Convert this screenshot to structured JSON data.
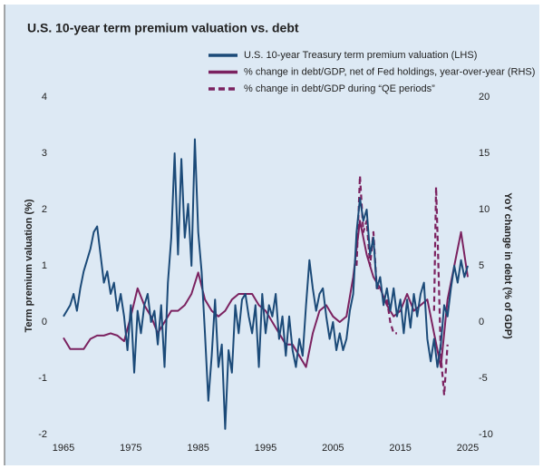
{
  "chart_data": {
    "type": "line",
    "title": "U.S. 10-year term premium valuation vs. debt",
    "ylabel": "Term premium valuation (%)",
    "y2label": "YoY change in debt (% of GDP)",
    "xlim": [
      1965,
      2025
    ],
    "xticks": [
      1965,
      1975,
      1985,
      1995,
      2005,
      2015,
      2025
    ],
    "ylim": [
      -2,
      4
    ],
    "yticks": [
      -2,
      -1,
      0,
      1,
      2,
      3,
      4
    ],
    "y2lim": [
      -10,
      20
    ],
    "y2ticks": [
      -10,
      -5,
      0,
      5,
      10,
      15,
      20
    ],
    "grid": false,
    "legend": "top",
    "series": [
      {
        "name": "U.S. 10-year Treasury term premium valuation (LHS)",
        "color": "#1b4a78",
        "style": "solid",
        "axis": "y",
        "x": [
          1965,
          1965.5,
          1966,
          1966.5,
          1967,
          1967.5,
          1968,
          1968.5,
          1969,
          1969.5,
          1970,
          1970.5,
          1971,
          1971.5,
          1972,
          1972.5,
          1973,
          1973.5,
          1974,
          1974.5,
          1975,
          1975.5,
          1976,
          1976.5,
          1977,
          1977.5,
          1978,
          1978.5,
          1979,
          1979.5,
          1980,
          1980.5,
          1981,
          1981.5,
          1982,
          1982.5,
          1983,
          1983.5,
          1984,
          1984.5,
          1985,
          1985.5,
          1986,
          1986.5,
          1987,
          1987.5,
          1988,
          1988.5,
          1989,
          1989.5,
          1990,
          1990.5,
          1991,
          1991.5,
          1992,
          1992.5,
          1993,
          1993.5,
          1994,
          1994.5,
          1995,
          1995.5,
          1996,
          1996.5,
          1997,
          1997.5,
          1998,
          1998.5,
          1999,
          1999.5,
          2000,
          2000.5,
          2001,
          2001.5,
          2002,
          2002.5,
          2003,
          2003.5,
          2004,
          2004.5,
          2005,
          2005.5,
          2006,
          2006.5,
          2007,
          2007.5,
          2008,
          2008.5,
          2009,
          2009.5,
          2010,
          2010.5,
          2011,
          2011.5,
          2012,
          2012.5,
          2013,
          2013.5,
          2014,
          2014.5,
          2015,
          2015.5,
          2016,
          2016.5,
          2017,
          2017.5,
          2018,
          2018.5,
          2019,
          2019.5,
          2020,
          2020.5,
          2021,
          2021.5,
          2022,
          2022.5,
          2023,
          2023.5,
          2024,
          2024.5,
          2025
        ],
        "values": [
          0.1,
          0.2,
          0.3,
          0.5,
          0.2,
          0.6,
          0.9,
          1.1,
          1.3,
          1.6,
          1.7,
          1.2,
          0.7,
          0.9,
          0.5,
          0.7,
          0.2,
          0.5,
          0.1,
          -0.5,
          0.3,
          -0.9,
          0.2,
          -0.2,
          0.3,
          0.5,
          0,
          0.2,
          -0.4,
          0.3,
          -0.8,
          0.7,
          1.5,
          3.0,
          1.2,
          2.9,
          1.5,
          2.1,
          1.0,
          3.25,
          1.6,
          0.9,
          -0.2,
          -1.4,
          -0.6,
          0.4,
          -0.8,
          -0.4,
          -1.9,
          -0.5,
          -0.9,
          0.3,
          -0.2,
          0.4,
          0.5,
          0.1,
          -0.2,
          0.3,
          -0.8,
          0.5,
          -0.2,
          0.3,
          0.1,
          0.5,
          -0.3,
          0.1,
          -0.6,
          0.1,
          -0.5,
          -0.8,
          -0.3,
          -0.6,
          0.3,
          1.1,
          0.6,
          0.2,
          0.5,
          0.6,
          0.1,
          -0.3,
          0,
          -0.5,
          -0.2,
          -0.5,
          -0.3,
          0.2,
          0.5,
          1.6,
          2.2,
          1.8,
          2.0,
          1.2,
          1.5,
          0.6,
          0.8,
          0.3,
          0.6,
          0.2,
          0.6,
          0.1,
          0.4,
          -0.2,
          0.4,
          -0.1,
          0.5,
          0.1,
          0.5,
          0.7,
          -0.3,
          -0.7,
          -0.3,
          -0.8,
          -0.4,
          0.3,
          0.1,
          0.6,
          1.0,
          0.7,
          1.1,
          0.8,
          1.0
        ]
      },
      {
        "name": "% change in debt/GDP, net of Fed holdings, year-over-year (RHS)",
        "color": "#7b2260",
        "style": "solid",
        "axis": "y2",
        "x": [
          1965,
          1966,
          1967,
          1968,
          1969,
          1970,
          1971,
          1972,
          1973,
          1974,
          1975,
          1976,
          1977,
          1978,
          1979,
          1980,
          1981,
          1982,
          1983,
          1984,
          1985,
          1986,
          1987,
          1988,
          1989,
          1990,
          1991,
          1992,
          1993,
          1994,
          1995,
          1996,
          1997,
          1998,
          1999,
          2000,
          2001,
          2002,
          2003,
          2004,
          2005,
          2006,
          2007,
          2008,
          2009,
          2010,
          2011,
          2012,
          2013,
          2014,
          2015,
          2016,
          2017,
          2018,
          2019,
          2020,
          2021,
          2022,
          2023,
          2024,
          2025
        ],
        "values": [
          -1.4,
          -2.4,
          -2.4,
          -2.4,
          -1.5,
          -1.2,
          -1.2,
          -1,
          -1.2,
          -1.7,
          0.5,
          3,
          1.5,
          0.5,
          -1,
          0,
          1,
          1,
          1.5,
          2.5,
          4.4,
          2,
          1,
          0.5,
          1,
          2,
          2.5,
          2.5,
          2.5,
          1.5,
          1,
          0,
          -1,
          -2,
          -2,
          -3,
          -4,
          -1,
          1,
          1.5,
          0.5,
          0,
          0.5,
          4,
          9,
          6,
          4,
          3,
          1.5,
          0.5,
          1,
          2.5,
          1,
          1.5,
          2,
          -1,
          -4,
          2,
          5,
          8,
          4
        ]
      },
      {
        "name": "% change in debt/GDP during “QE periods”",
        "color": "#7b2260",
        "style": "dashed",
        "axis": "y2",
        "x": [
          2008.5,
          2009,
          2009.5,
          2010,
          2010.5,
          2011,
          2011.5,
          2012,
          2012.5,
          2013,
          2013.5,
          2014,
          2014.5,
          2017,
          2020,
          2020.3,
          2020.6,
          2021,
          2021.5,
          2022
        ],
        "values": [
          5,
          13,
          8,
          9,
          5,
          8,
          3,
          3,
          null,
          2,
          0,
          -1,
          -1,
          null,
          1,
          12,
          6,
          -3,
          -6.5,
          -2
        ]
      }
    ]
  }
}
